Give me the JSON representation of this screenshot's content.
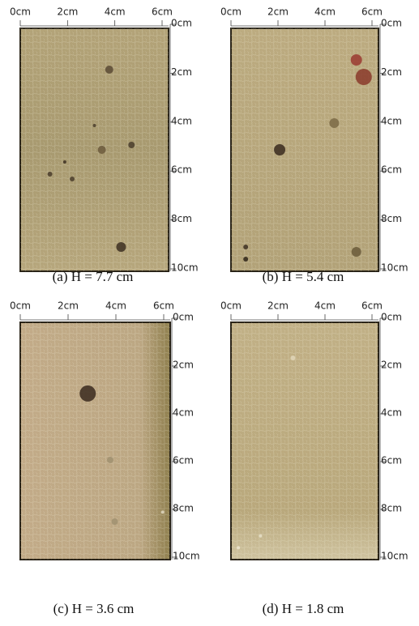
{
  "panels": [
    {
      "caption": "(a)  H = 7.7 cm",
      "x_labels": [
        "0cm",
        "2cm",
        "4cm",
        "6cm"
      ],
      "y_labels": [
        "0cm",
        "2cm",
        "4cm",
        "6cm",
        "8cm",
        "10cm"
      ]
    },
    {
      "caption": "(b)  H = 5.4 cm",
      "x_labels": [
        "0cm",
        "2cm",
        "4cm",
        "6cm"
      ],
      "y_labels": [
        "0cm",
        "2cm",
        "4cm",
        "6cm",
        "8cm",
        "10cm"
      ]
    },
    {
      "caption": "(c)  H = 3.6 cm",
      "x_labels": [
        "0cm",
        "2cm",
        "4cm",
        "6cm"
      ],
      "y_labels": [
        "0cm",
        "2cm",
        "4cm",
        "6cm",
        "8cm",
        "10cm"
      ]
    },
    {
      "caption": "(d)  H = 1.8 cm",
      "x_labels": [
        "0cm",
        "2cm",
        "4cm",
        "6cm"
      ],
      "y_labels": [
        "0cm",
        "2cm",
        "4cm",
        "6cm",
        "8cm",
        "10cm"
      ]
    }
  ]
}
